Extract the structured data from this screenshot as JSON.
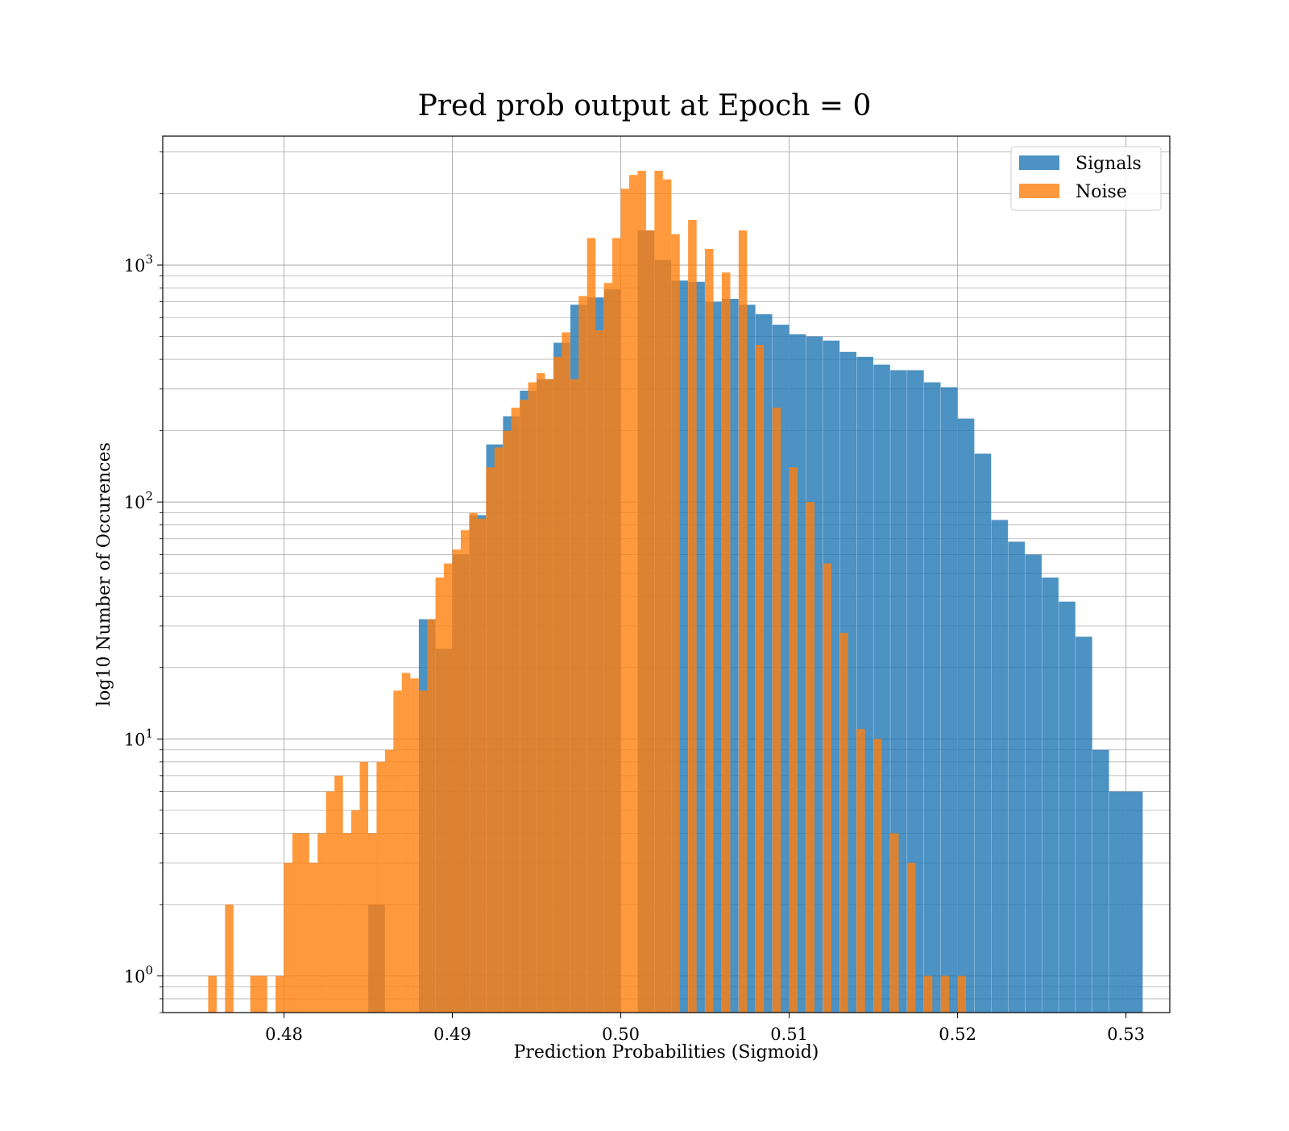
{
  "chart_data": {
    "type": "bar",
    "subtype": "overlapping-histogram",
    "title": "Pred prob output at Epoch = 0",
    "xlabel": "Prediction Probabilities (Sigmoid)",
    "ylabel": "log10 Number of Occurences",
    "yscale": "log",
    "xlim": [
      0.4728,
      0.5326
    ],
    "ylim": [
      0.7,
      3500
    ],
    "grid": true,
    "legend": {
      "position": "top-right",
      "entries": [
        "Signals",
        "Noise"
      ]
    },
    "x_ticks": [
      {
        "value": 0.48,
        "label": "0.48"
      },
      {
        "value": 0.49,
        "label": "0.49"
      },
      {
        "value": 0.5,
        "label": "0.50"
      },
      {
        "value": 0.51,
        "label": "0.51"
      },
      {
        "value": 0.52,
        "label": "0.52"
      },
      {
        "value": 0.53,
        "label": "0.53"
      }
    ],
    "y_ticks": [
      {
        "value": 1,
        "base": "10",
        "exp": "0"
      },
      {
        "value": 10,
        "base": "10",
        "exp": "1"
      },
      {
        "value": 100,
        "base": "10",
        "exp": "2"
      },
      {
        "value": 1000,
        "base": "10",
        "exp": "3"
      }
    ],
    "series": [
      {
        "name": "Signals",
        "color": "#1f77b4",
        "bin_width": 0.000985,
        "bins": [
          [
            0.4855,
            2
          ],
          [
            0.4885,
            32
          ],
          [
            0.4895,
            24
          ],
          [
            0.4905,
            60
          ],
          [
            0.4915,
            88
          ],
          [
            0.4925,
            175
          ],
          [
            0.4935,
            230
          ],
          [
            0.4945,
            295
          ],
          [
            0.4955,
            330
          ],
          [
            0.4965,
            470
          ],
          [
            0.4975,
            680
          ],
          [
            0.4985,
            730
          ],
          [
            0.4995,
            790
          ],
          [
            0.5015,
            1400
          ],
          [
            0.5025,
            1050
          ],
          [
            0.5035,
            860
          ],
          [
            0.5045,
            850
          ],
          [
            0.5055,
            700
          ],
          [
            0.5065,
            720
          ],
          [
            0.5075,
            680
          ],
          [
            0.5085,
            620
          ],
          [
            0.5095,
            560
          ],
          [
            0.5105,
            510
          ],
          [
            0.5115,
            500
          ],
          [
            0.5125,
            480
          ],
          [
            0.5135,
            430
          ],
          [
            0.5145,
            410
          ],
          [
            0.5155,
            380
          ],
          [
            0.5165,
            360
          ],
          [
            0.5175,
            360
          ],
          [
            0.5185,
            320
          ],
          [
            0.5195,
            305
          ],
          [
            0.5205,
            225
          ],
          [
            0.5215,
            160
          ],
          [
            0.5225,
            84
          ],
          [
            0.5235,
            68
          ],
          [
            0.5245,
            60
          ],
          [
            0.5255,
            48
          ],
          [
            0.5265,
            38
          ],
          [
            0.5275,
            27
          ],
          [
            0.5285,
            9
          ],
          [
            0.5295,
            6
          ],
          [
            0.5305,
            6
          ]
        ]
      },
      {
        "name": "Noise",
        "color": "#ff7f0e",
        "bin_width": 0.000505,
        "bins": [
          [
            0.47575,
            1
          ],
          [
            0.47675,
            2
          ],
          [
            0.47825,
            1
          ],
          [
            0.47875,
            1
          ],
          [
            0.47975,
            1
          ],
          [
            0.48025,
            3
          ],
          [
            0.48075,
            4
          ],
          [
            0.48125,
            4
          ],
          [
            0.48175,
            3
          ],
          [
            0.48225,
            4
          ],
          [
            0.48275,
            6
          ],
          [
            0.48325,
            7
          ],
          [
            0.48375,
            4
          ],
          [
            0.48425,
            5
          ],
          [
            0.48475,
            8
          ],
          [
            0.48525,
            4
          ],
          [
            0.48575,
            8
          ],
          [
            0.48625,
            9
          ],
          [
            0.48675,
            16
          ],
          [
            0.48725,
            19
          ],
          [
            0.48775,
            18
          ],
          [
            0.48825,
            16
          ],
          [
            0.48875,
            32
          ],
          [
            0.48925,
            48
          ],
          [
            0.48975,
            55
          ],
          [
            0.49025,
            63
          ],
          [
            0.49075,
            76
          ],
          [
            0.49125,
            90
          ],
          [
            0.49175,
            85
          ],
          [
            0.49225,
            140
          ],
          [
            0.49275,
            170
          ],
          [
            0.49325,
            200
          ],
          [
            0.49375,
            250
          ],
          [
            0.49425,
            270
          ],
          [
            0.49475,
            320
          ],
          [
            0.49525,
            350
          ],
          [
            0.49575,
            330
          ],
          [
            0.49625,
            410
          ],
          [
            0.49675,
            520
          ],
          [
            0.49725,
            330
          ],
          [
            0.49775,
            740
          ],
          [
            0.49825,
            1300
          ],
          [
            0.49875,
            530
          ],
          [
            0.49925,
            840
          ],
          [
            0.49975,
            1300
          ],
          [
            0.50025,
            2100
          ],
          [
            0.50075,
            2400
          ],
          [
            0.50125,
            2500
          ],
          [
            0.50175,
            1400
          ],
          [
            0.50225,
            2500
          ],
          [
            0.50275,
            2300
          ],
          [
            0.50325,
            1350
          ],
          [
            0.50425,
            1550
          ],
          [
            0.50525,
            1170
          ],
          [
            0.50625,
            930
          ],
          [
            0.50725,
            1400
          ],
          [
            0.50825,
            460
          ],
          [
            0.50925,
            250
          ],
          [
            0.51025,
            140
          ],
          [
            0.51125,
            100
          ],
          [
            0.51225,
            55
          ],
          [
            0.51325,
            28
          ],
          [
            0.51425,
            11
          ],
          [
            0.51525,
            10
          ],
          [
            0.51625,
            4
          ],
          [
            0.51725,
            3
          ],
          [
            0.51825,
            1
          ],
          [
            0.51925,
            1
          ],
          [
            0.52025,
            1
          ]
        ]
      }
    ]
  }
}
